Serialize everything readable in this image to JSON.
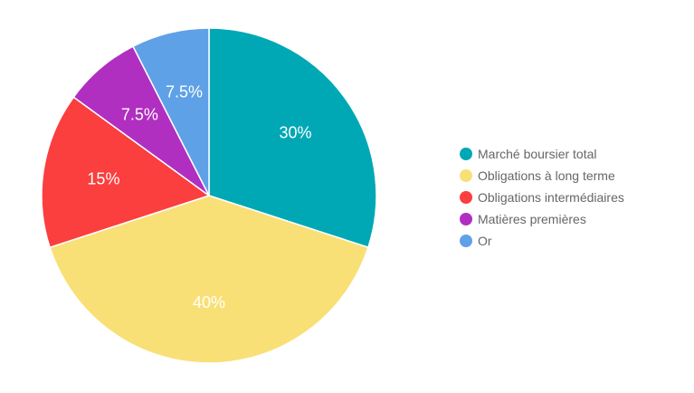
{
  "chart_data": {
    "type": "pie",
    "categories": [
      "Marché boursier total",
      "Obligations à long terme",
      "Obligations intermédiaires",
      "Matières premières",
      "Or"
    ],
    "values": [
      30,
      40,
      15,
      7.5,
      7.5
    ],
    "data_labels": [
      "30%",
      "40%",
      "15%",
      "7.5%",
      "7.5%"
    ],
    "colors": [
      "#00a8b5",
      "#f9e076",
      "#fb3e3e",
      "#b02fc1",
      "#5fa1e7"
    ],
    "legend_position": "right",
    "start_angle": "top",
    "direction": "clockwise"
  }
}
